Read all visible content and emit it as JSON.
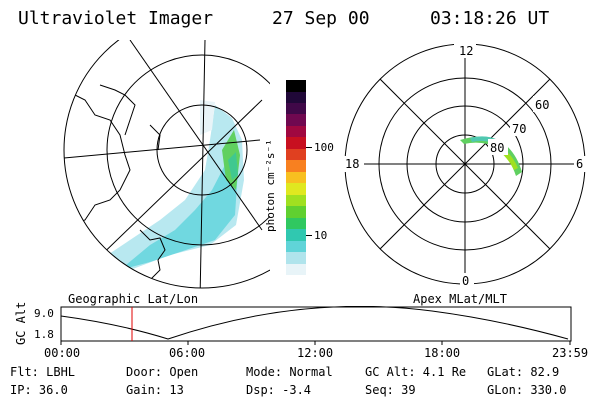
{
  "header": {
    "instrument": "Ultraviolet Imager",
    "date": "27 Sep 00",
    "time": "03:18:26 UT"
  },
  "panels": {
    "geo_label": "Geographic Lat/Lon",
    "apex_label": "Apex MLat/MLT"
  },
  "colorbar": {
    "unit_label": "photon cm⁻²s⁻¹",
    "ticks": [
      "100",
      "10"
    ],
    "colors": [
      "#e8f4f8",
      "#b0e4ec",
      "#60d4d8",
      "#30c8b0",
      "#30c860",
      "#60d030",
      "#a0e020",
      "#e0e820",
      "#f8c020",
      "#f88020",
      "#e04020",
      "#c81020",
      "#a00840",
      "#700850",
      "#400848",
      "#200838",
      "#000000"
    ]
  },
  "polar": {
    "hour_labels": [
      "12",
      "18",
      "6",
      "0"
    ],
    "lat_labels": [
      "60",
      "70",
      "80"
    ]
  },
  "timeline": {
    "ylabel": "GC Alt",
    "y_ticks": [
      "9.0",
      "1.8"
    ],
    "x_ticks": [
      "00:00",
      "06:00",
      "12:00",
      "18:00",
      "23:59"
    ]
  },
  "info": {
    "flt": "Flt: LBHL",
    "ip": "IP: 36.0",
    "door": "Door: Open",
    "gain": "Gain: 13",
    "mode": "Mode: Normal",
    "dsp": "Dsp:   -3.4",
    "gcalt": "GC Alt: 4.1 Re",
    "seq": "Seq: 39",
    "glat": "GLat:  82.9",
    "glon": "GLon: 330.0"
  }
}
